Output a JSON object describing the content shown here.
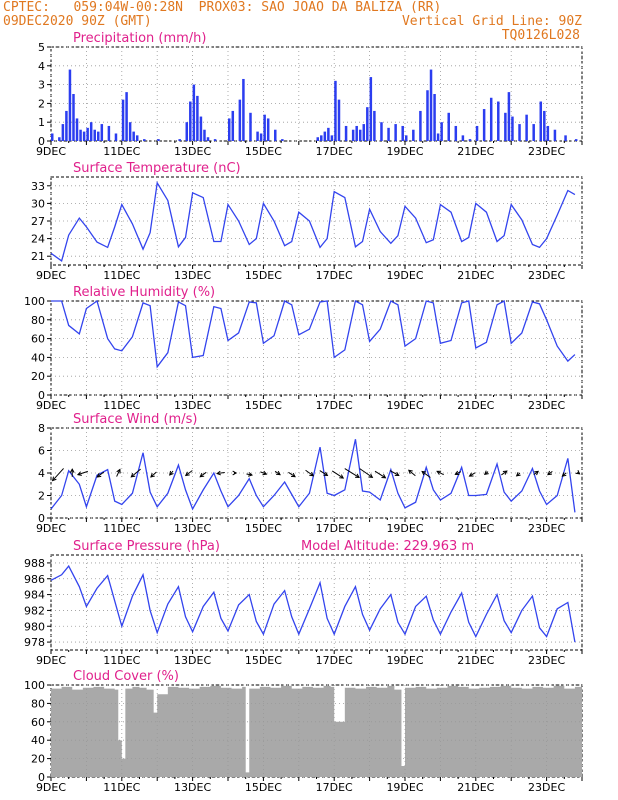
{
  "header": {
    "line1_left": "CPTEC:   059:04W-00:28N  PROX03: SAO JOAO DA BALIZA (RR)",
    "line2_left": "09DEC2020 90Z (GMT)",
    "line2_right": "Vertical Grid Line: 90Z",
    "line3_right": "TQ0126L028"
  },
  "colors": {
    "header": "#e07820",
    "title": "#e0208c",
    "series": "#3344ee",
    "bars": "#2b3df0",
    "cloud": "#a9a9a9",
    "grid": "#999999"
  },
  "date_labels": [
    "9DEC",
    "11DEC",
    "13DEC",
    "15DEC",
    "17DEC",
    "19DEC",
    "21DEC",
    "23DEC"
  ],
  "chart_data": [
    {
      "id": "precip",
      "type": "bar",
      "title": "Precipitation (mm/h)",
      "ylim": [
        0,
        5
      ],
      "yticks": [
        0,
        1,
        2,
        3,
        4,
        5
      ],
      "x": [
        9.0,
        9.2,
        9.3,
        9.4,
        9.5,
        9.6,
        9.7,
        9.8,
        9.9,
        10.0,
        10.1,
        10.2,
        10.3,
        10.4,
        10.6,
        10.8,
        11.0,
        11.1,
        11.2,
        11.3,
        11.4,
        11.6,
        11.8,
        12.0,
        12.3,
        12.6,
        12.8,
        12.9,
        13.0,
        13.1,
        13.2,
        13.3,
        13.4,
        13.6,
        13.8,
        14.0,
        14.1,
        14.3,
        14.4,
        14.6,
        14.8,
        14.9,
        15.0,
        15.1,
        15.3,
        15.5,
        16.5,
        16.6,
        16.7,
        16.8,
        16.9,
        17.0,
        17.1,
        17.3,
        17.5,
        17.6,
        17.7,
        17.8,
        17.9,
        18.0,
        18.1,
        18.3,
        18.5,
        18.7,
        18.9,
        19.0,
        19.2,
        19.4,
        19.6,
        19.7,
        19.8,
        19.9,
        20.0,
        20.2,
        20.4,
        20.6,
        20.8,
        21.0,
        21.2,
        21.4,
        21.6,
        21.8,
        21.9,
        22.0,
        22.2,
        22.4,
        22.6,
        22.8,
        22.9,
        23.0,
        23.2,
        23.5,
        23.8
      ],
      "values": [
        0.4,
        0.2,
        0.9,
        1.6,
        3.8,
        2.5,
        1.2,
        0.6,
        0.5,
        0.7,
        1.0,
        0.6,
        0.5,
        0.9,
        0.8,
        0.4,
        2.2,
        2.6,
        1.0,
        0.5,
        0.3,
        0.1,
        0.0,
        0.1,
        0.0,
        0.1,
        1.0,
        2.1,
        3.0,
        2.4,
        1.3,
        0.6,
        0.2,
        0.1,
        0.0,
        1.2,
        1.6,
        2.2,
        3.3,
        1.5,
        0.5,
        0.4,
        1.4,
        1.2,
        0.6,
        0.1,
        0.2,
        0.3,
        0.5,
        0.7,
        0.3,
        3.2,
        2.2,
        0.8,
        0.6,
        0.8,
        0.6,
        0.9,
        1.8,
        3.4,
        1.6,
        1.0,
        0.7,
        0.9,
        0.8,
        0.3,
        0.6,
        1.6,
        2.7,
        3.8,
        2.5,
        0.4,
        1.0,
        1.5,
        0.8,
        0.3,
        0.1,
        0.8,
        1.7,
        2.3,
        2.1,
        1.5,
        2.6,
        1.3,
        0.9,
        1.4,
        0.9,
        2.1,
        1.6,
        0.8,
        0.6,
        0.3,
        0.1
      ]
    },
    {
      "id": "temp",
      "type": "line",
      "title": "Surface Temperature (nC)",
      "ylim": [
        19.5,
        34.5
      ],
      "yticks": [
        21,
        24,
        27,
        30,
        33
      ],
      "x": [
        9.0,
        9.3,
        9.5,
        9.8,
        10.0,
        10.3,
        10.6,
        10.8,
        11.0,
        11.3,
        11.6,
        11.8,
        12.0,
        12.3,
        12.6,
        12.8,
        13.0,
        13.3,
        13.6,
        13.8,
        14.0,
        14.3,
        14.6,
        14.8,
        15.0,
        15.3,
        15.6,
        15.8,
        16.0,
        16.3,
        16.6,
        16.8,
        17.0,
        17.3,
        17.6,
        17.8,
        18.0,
        18.3,
        18.6,
        18.8,
        19.0,
        19.3,
        19.6,
        19.8,
        20.0,
        20.3,
        20.6,
        20.8,
        21.0,
        21.3,
        21.6,
        21.8,
        22.0,
        22.3,
        22.6,
        22.8,
        23.0,
        23.3,
        23.6,
        23.8
      ],
      "values": [
        21.5,
        20.2,
        24.6,
        27.5,
        26.0,
        23.4,
        22.5,
        26.0,
        29.8,
        26.5,
        22.2,
        25.0,
        33.5,
        30.5,
        22.6,
        24.2,
        31.8,
        31.0,
        23.5,
        23.5,
        29.8,
        27.0,
        23.0,
        24.0,
        30.0,
        27.0,
        22.8,
        23.5,
        28.5,
        27.0,
        22.5,
        24.0,
        32.0,
        31.0,
        22.6,
        23.5,
        29.0,
        25.2,
        23.2,
        24.5,
        29.5,
        27.5,
        23.3,
        23.8,
        29.8,
        28.5,
        23.5,
        24.2,
        30.0,
        28.5,
        23.5,
        24.5,
        29.8,
        27.2,
        23.0,
        22.5,
        24.0,
        28.0,
        32.2,
        31.5
      ]
    },
    {
      "id": "rh",
      "type": "line",
      "title": "Relative Humidity (%)",
      "ylim": [
        0,
        100
      ],
      "yticks": [
        0,
        20,
        40,
        60,
        80,
        100
      ],
      "x": [
        9.0,
        9.3,
        9.5,
        9.8,
        10.0,
        10.3,
        10.6,
        10.8,
        11.0,
        11.3,
        11.6,
        11.8,
        12.0,
        12.3,
        12.6,
        12.8,
        13.0,
        13.3,
        13.6,
        13.8,
        14.0,
        14.3,
        14.6,
        14.8,
        15.0,
        15.3,
        15.6,
        15.8,
        16.0,
        16.3,
        16.6,
        16.8,
        17.0,
        17.3,
        17.6,
        17.8,
        18.0,
        18.3,
        18.6,
        18.8,
        19.0,
        19.3,
        19.6,
        19.8,
        20.0,
        20.3,
        20.6,
        20.8,
        21.0,
        21.3,
        21.6,
        21.8,
        22.0,
        22.3,
        22.6,
        22.8,
        23.0,
        23.3,
        23.6,
        23.8
      ],
      "values": [
        100,
        100,
        74,
        65,
        92,
        100,
        60,
        49,
        47,
        62,
        98,
        95,
        30,
        45,
        99,
        95,
        40,
        42,
        94,
        92,
        58,
        66,
        99,
        98,
        55,
        63,
        100,
        96,
        64,
        70,
        99,
        100,
        40,
        48,
        100,
        96,
        57,
        70,
        100,
        96,
        52,
        60,
        100,
        98,
        55,
        58,
        98,
        100,
        50,
        56,
        96,
        100,
        55,
        66,
        99,
        97,
        80,
        52,
        36,
        43
      ]
    },
    {
      "id": "wind",
      "type": "line",
      "title": "Surface Wind (m/s)",
      "ylim": [
        0,
        8
      ],
      "yticks": [
        0,
        2,
        4,
        6,
        8
      ],
      "x": [
        9.0,
        9.3,
        9.5,
        9.8,
        10.0,
        10.3,
        10.6,
        10.8,
        11.0,
        11.3,
        11.6,
        11.8,
        12.0,
        12.3,
        12.6,
        12.8,
        13.0,
        13.3,
        13.6,
        13.8,
        14.0,
        14.3,
        14.6,
        14.8,
        15.0,
        15.3,
        15.6,
        15.8,
        16.0,
        16.3,
        16.6,
        16.8,
        17.0,
        17.3,
        17.6,
        17.8,
        18.0,
        18.3,
        18.6,
        18.8,
        19.0,
        19.3,
        19.6,
        19.8,
        20.0,
        20.3,
        20.6,
        20.8,
        21.0,
        21.3,
        21.6,
        21.8,
        22.0,
        22.3,
        22.6,
        22.8,
        23.0,
        23.3,
        23.6,
        23.8
      ],
      "values": [
        0.8,
        2.0,
        4.2,
        3.0,
        1.0,
        3.8,
        4.3,
        1.5,
        1.2,
        2.2,
        5.8,
        2.3,
        1.0,
        2.2,
        4.7,
        2.5,
        0.8,
        2.5,
        4.0,
        2.4,
        1.0,
        2.0,
        3.5,
        2.0,
        1.0,
        2.0,
        3.2,
        2.1,
        1.0,
        2.2,
        6.3,
        2.2,
        2.0,
        2.5,
        7.0,
        2.4,
        2.3,
        1.6,
        4.3,
        2.2,
        0.9,
        1.4,
        4.5,
        2.5,
        1.6,
        2.2,
        4.5,
        2.0,
        2.0,
        2.1,
        4.8,
        2.3,
        1.5,
        2.4,
        4.4,
        2.4,
        1.2,
        2.0,
        5.3,
        0.5
      ],
      "vectors": {
        "x": [
          9.2,
          9.6,
          9.9,
          10.4,
          10.9,
          11.4,
          11.9,
          12.4,
          12.9,
          13.3,
          13.8,
          14.2,
          14.6,
          15.0,
          15.4,
          15.8,
          16.3,
          16.7,
          17.1,
          17.5,
          17.9,
          18.3,
          18.7,
          19.2,
          19.6,
          20.0,
          20.5,
          20.9,
          21.3,
          21.8,
          22.2,
          22.7,
          23.1,
          23.5,
          23.9
        ],
        "u": [
          -2.0,
          0.0,
          -1.8,
          -1.2,
          0.6,
          -1.7,
          -1.0,
          -0.6,
          -1.2,
          -1.1,
          -1.4,
          0.4,
          1.0,
          1.1,
          0.9,
          1.2,
          1.4,
          1.4,
          2.0,
          2.6,
          2.3,
          1.9,
          1.6,
          -1.2,
          -1.5,
          -1.2,
          -1.0,
          -1.0,
          -0.6,
          1.0,
          -0.6,
          0.8,
          -0.8,
          -0.7,
          0.4
        ],
        "v": [
          -2.2,
          1.4,
          -0.6,
          -0.9,
          1.3,
          -1.4,
          -0.9,
          -0.7,
          -0.9,
          -0.8,
          -0.2,
          0.0,
          -0.2,
          -0.4,
          -0.6,
          -0.8,
          -1.0,
          -0.9,
          -1.3,
          -1.6,
          -1.6,
          -1.2,
          -0.9,
          1.0,
          1.1,
          0.6,
          -0.5,
          -0.6,
          -0.5,
          0.7,
          -0.5,
          0.6,
          -0.6,
          -0.6,
          -0.3
        ]
      }
    },
    {
      "id": "pres",
      "type": "line",
      "title": "Surface Pressure (hPa)",
      "annotation": "Model Altitude: 229.963 m",
      "ylim": [
        977,
        989
      ],
      "yticks": [
        978,
        980,
        982,
        984,
        986,
        988
      ],
      "x": [
        9.0,
        9.3,
        9.5,
        9.8,
        10.0,
        10.3,
        10.6,
        10.8,
        11.0,
        11.3,
        11.6,
        11.8,
        12.0,
        12.3,
        12.6,
        12.8,
        13.0,
        13.3,
        13.6,
        13.8,
        14.0,
        14.3,
        14.6,
        14.8,
        15.0,
        15.3,
        15.6,
        15.8,
        16.0,
        16.3,
        16.6,
        16.8,
        17.0,
        17.3,
        17.6,
        17.8,
        18.0,
        18.3,
        18.6,
        18.8,
        19.0,
        19.3,
        19.6,
        19.8,
        20.0,
        20.3,
        20.6,
        20.8,
        21.0,
        21.3,
        21.6,
        21.8,
        22.0,
        22.3,
        22.6,
        22.8,
        23.0,
        23.3,
        23.6,
        23.8
      ],
      "values": [
        985.8,
        986.5,
        987.6,
        985.0,
        982.5,
        984.8,
        986.4,
        983.2,
        980.0,
        983.8,
        986.5,
        982.0,
        979.2,
        982.8,
        985.0,
        981.2,
        979.3,
        982.5,
        984.3,
        981.0,
        979.4,
        982.7,
        984.0,
        980.6,
        979.0,
        982.8,
        984.5,
        981.2,
        979.0,
        982.2,
        985.5,
        981.0,
        979.0,
        982.5,
        985.0,
        981.5,
        979.5,
        982.2,
        984.0,
        980.5,
        979.0,
        982.5,
        983.8,
        980.8,
        979.0,
        981.8,
        984.2,
        980.5,
        978.7,
        981.5,
        984.0,
        980.7,
        979.2,
        982.0,
        983.8,
        979.8,
        978.7,
        982.2,
        983.0,
        978.0
      ]
    },
    {
      "id": "cloud",
      "type": "area",
      "title": "Cloud Cover (%)",
      "ylim": [
        0,
        100
      ],
      "yticks": [
        0,
        20,
        40,
        60,
        80,
        100
      ],
      "x": [
        9.0,
        9.3,
        9.6,
        9.9,
        10.2,
        10.5,
        10.8,
        10.9,
        11.0,
        11.1,
        11.3,
        11.5,
        11.7,
        11.9,
        12.0,
        12.3,
        12.6,
        12.9,
        13.2,
        13.5,
        13.8,
        14.1,
        14.4,
        14.5,
        14.6,
        14.9,
        15.2,
        15.5,
        15.8,
        16.1,
        16.4,
        16.7,
        16.9,
        17.0,
        17.3,
        17.6,
        17.9,
        18.2,
        18.5,
        18.7,
        18.9,
        19.0,
        19.3,
        19.6,
        19.9,
        20.2,
        20.5,
        20.8,
        21.1,
        21.4,
        21.7,
        22.0,
        22.3,
        22.6,
        22.9,
        23.2,
        23.5,
        23.8,
        24.0
      ],
      "values": [
        96,
        98,
        95,
        97,
        98,
        96,
        95,
        40,
        20,
        96,
        98,
        97,
        95,
        70,
        90,
        98,
        97,
        96,
        98,
        99,
        97,
        96,
        98,
        5,
        96,
        98,
        97,
        99,
        96,
        98,
        97,
        99,
        98,
        60,
        97,
        96,
        98,
        97,
        99,
        95,
        12,
        97,
        98,
        96,
        97,
        99,
        98,
        96,
        97,
        98,
        99,
        97,
        96,
        98,
        97,
        99,
        96,
        98,
        95
      ]
    }
  ]
}
